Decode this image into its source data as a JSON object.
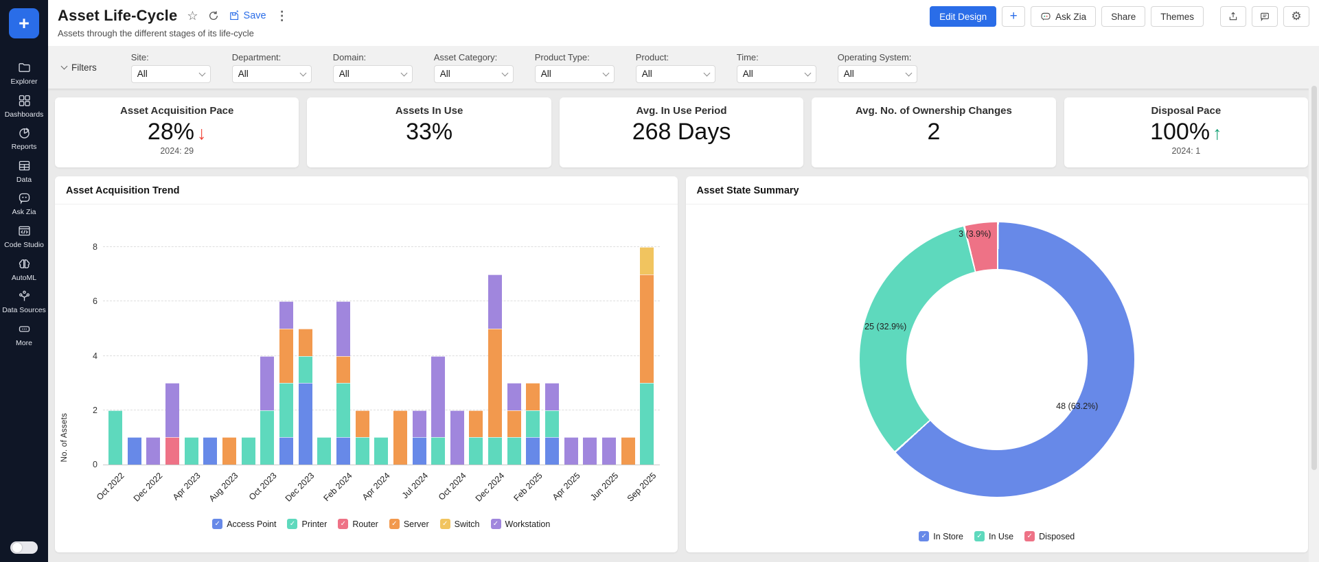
{
  "header": {
    "title": "Asset Life-Cycle",
    "subtitle": "Assets through the different stages of its life-cycle",
    "save_label": "Save",
    "edit_design_label": "Edit Design",
    "add_label": "+",
    "ask_zia_label": "Ask Zia",
    "share_label": "Share",
    "themes_label": "Themes"
  },
  "sidebar": {
    "plus_label": "+",
    "items": [
      {
        "label": "Explorer",
        "icon": "folder-icon"
      },
      {
        "label": "Dashboards",
        "icon": "dashboards-grid-icon"
      },
      {
        "label": "Reports",
        "icon": "reports-pie-icon"
      },
      {
        "label": "Data",
        "icon": "data-table-icon"
      },
      {
        "label": "Ask Zia",
        "icon": "ask-zia-chat-icon"
      },
      {
        "label": "Code Studio",
        "icon": "code-window-icon"
      },
      {
        "label": "AutoML",
        "icon": "automl-brain-icon"
      },
      {
        "label": "Data Sources",
        "icon": "data-sources-icon"
      },
      {
        "label": "More",
        "icon": "more-ellipsis-icon"
      }
    ]
  },
  "filters": {
    "toggle_label": "Filters",
    "fields": [
      {
        "label": "Site:",
        "value": "All"
      },
      {
        "label": "Department:",
        "value": "All"
      },
      {
        "label": "Domain:",
        "value": "All"
      },
      {
        "label": "Asset Category:",
        "value": "All"
      },
      {
        "label": "Product Type:",
        "value": "All"
      },
      {
        "label": "Product:",
        "value": "All"
      },
      {
        "label": "Time:",
        "value": "All"
      },
      {
        "label": "Operating System:",
        "value": "All"
      }
    ]
  },
  "kpis": [
    {
      "title": "Asset Acquisition Pace",
      "value": "28%",
      "trend": "down",
      "caption": "2024: 29"
    },
    {
      "title": "Assets In Use",
      "value": "33%",
      "trend": "",
      "caption": ""
    },
    {
      "title": "Avg. In Use Period",
      "value": "268 Days",
      "trend": "",
      "caption": ""
    },
    {
      "title": "Avg. No. of Ownership Changes",
      "value": "2",
      "trend": "",
      "caption": ""
    },
    {
      "title": "Disposal Pace",
      "value": "100%",
      "trend": "up",
      "caption": "2024: 1"
    }
  ],
  "colors": {
    "accent": "#2a6de8",
    "trend_down": "#f04438",
    "trend_up": "#17a277",
    "sidebar_bg": "#0f1626"
  },
  "chart_data": [
    {
      "type": "bar",
      "stacked": true,
      "title": "Asset Acquisition Trend",
      "xlabel": "",
      "ylabel": "No. of Assets",
      "ylim": [
        0,
        8
      ],
      "yticks": [
        0,
        2,
        4,
        6,
        8
      ],
      "grid": "dashed-horizontal",
      "legend_position": "bottom",
      "series_order_bottom_to_top": [
        "Access Point",
        "Printer",
        "Router",
        "Server",
        "Switch",
        "Workstation"
      ],
      "series_colors": {
        "Access Point": "#6789e8",
        "Printer": "#5ed9bd",
        "Router": "#ee7286",
        "Server": "#f2994e",
        "Switch": "#f1c45f",
        "Workstation": "#a086dd"
      },
      "legend": [
        "Access Point",
        "Printer",
        "Router",
        "Server",
        "Switch",
        "Workstation"
      ],
      "bars": [
        {
          "label": "Oct 2022",
          "segments": {
            "Printer": 2
          }
        },
        {
          "label": "",
          "segments": {
            "Access Point": 1
          }
        },
        {
          "label": "Dec 2022",
          "segments": {
            "Workstation": 1
          }
        },
        {
          "label": "",
          "segments": {
            "Router": 1,
            "Workstation": 2
          }
        },
        {
          "label": "Apr 2023",
          "segments": {
            "Printer": 1
          }
        },
        {
          "label": "",
          "segments": {
            "Access Point": 1
          }
        },
        {
          "label": "Aug 2023",
          "segments": {
            "Server": 1
          }
        },
        {
          "label": "",
          "segments": {
            "Printer": 1
          }
        },
        {
          "label": "Oct 2023",
          "segments": {
            "Printer": 2,
            "Workstation": 2
          }
        },
        {
          "label": "",
          "segments": {
            "Access Point": 1,
            "Printer": 2,
            "Server": 2,
            "Workstation": 1
          }
        },
        {
          "label": "Dec 2023",
          "segments": {
            "Access Point": 3,
            "Printer": 1,
            "Server": 1
          }
        },
        {
          "label": "",
          "segments": {
            "Printer": 1
          }
        },
        {
          "label": "Feb 2024",
          "segments": {
            "Access Point": 1,
            "Printer": 2,
            "Server": 1,
            "Workstation": 2
          }
        },
        {
          "label": "",
          "segments": {
            "Printer": 1,
            "Server": 1
          }
        },
        {
          "label": "Apr 2024",
          "segments": {
            "Printer": 1
          }
        },
        {
          "label": "",
          "segments": {
            "Server": 2
          }
        },
        {
          "label": "Jul 2024",
          "segments": {
            "Access Point": 1,
            "Workstation": 1
          }
        },
        {
          "label": "",
          "segments": {
            "Printer": 1,
            "Workstation": 3
          }
        },
        {
          "label": "Oct 2024",
          "segments": {
            "Workstation": 2
          }
        },
        {
          "label": "",
          "segments": {
            "Printer": 1,
            "Server": 1
          }
        },
        {
          "label": "Dec 2024",
          "segments": {
            "Printer": 1,
            "Server": 4,
            "Workstation": 2
          }
        },
        {
          "label": "",
          "segments": {
            "Printer": 1,
            "Server": 1,
            "Workstation": 1
          }
        },
        {
          "label": "Feb 2025",
          "segments": {
            "Access Point": 1,
            "Printer": 1,
            "Server": 1
          }
        },
        {
          "label": "",
          "segments": {
            "Access Point": 1,
            "Printer": 1,
            "Workstation": 1
          }
        },
        {
          "label": "Apr 2025",
          "segments": {
            "Workstation": 1
          }
        },
        {
          "label": "",
          "segments": {
            "Workstation": 1
          }
        },
        {
          "label": "Jun 2025",
          "segments": {
            "Workstation": 1
          }
        },
        {
          "label": "",
          "segments": {
            "Server": 1
          }
        },
        {
          "label": "Sep 2025",
          "segments": {
            "Printer": 3,
            "Server": 4,
            "Switch": 1
          }
        }
      ]
    },
    {
      "type": "pie",
      "variant": "donut",
      "title": "Asset State Summary",
      "legend_position": "bottom",
      "slices": [
        {
          "label": "In Store",
          "value": 48,
          "display": "48 (63.2%)",
          "color": "#6789e8"
        },
        {
          "label": "In Use",
          "value": 25,
          "display": "25 (32.9%)",
          "color": "#5ed9bd"
        },
        {
          "label": "Disposed",
          "value": 3,
          "display": "3 (3.9%)",
          "color": "#ee7286"
        }
      ]
    }
  ]
}
